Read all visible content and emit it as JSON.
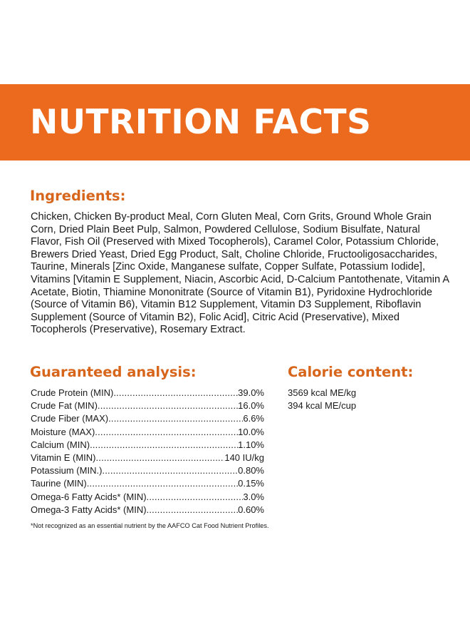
{
  "banner": {
    "title": "NUTRITION FACTS",
    "color": "#ec6a1e"
  },
  "accent_color": "#d7661c",
  "ingredients": {
    "heading": "Ingredients:",
    "text": "Chicken, Chicken By-product Meal, Corn Gluten Meal, Corn Grits, Ground Whole Grain Corn, Dried Plain Beet Pulp, Salmon, Powdered Cellulose, Sodium Bisulfate, Natural Flavor, Fish Oil (Preserved with Mixed Tocopherols), Caramel Color, Potassium Chloride, Brewers Dried Yeast, Dried Egg Product, Salt, Choline Chloride, Fructooligosaccharides, Taurine, Minerals [Zinc Oxide, Manganese sulfate, Copper Sulfate, Potassium Iodide], Vitamins [Vitamin E Supplement, Niacin, Ascorbic Acid, D-Calcium Pantothenate, Vitamin A Acetate, Biotin, Thiamine Mononitrate (Source of Vitamin B1), Pyridoxine Hydrochloride (Source of Vitamin B6), Vitamin B12 Supplement, Vitamin D3 Supplement, Riboflavin Supplement (Source of Vitamin B2), Folic Acid], Citric Acid (Preservative), Mixed Tocopherols (Preservative), Rosemary Extract."
  },
  "analysis": {
    "heading": "Guaranteed analysis:",
    "rows": [
      {
        "label": "Crude Protein (MIN)",
        "value": "39.0%"
      },
      {
        "label": "Crude Fat (MIN)",
        "value": "16.0%"
      },
      {
        "label": "Crude Fiber (MAX)",
        "value": "6.6%"
      },
      {
        "label": "Moisture (MAX)",
        "value": "10.0%"
      },
      {
        "label": "Calcium (MIN)",
        "value": "1.10%"
      },
      {
        "label": "Vitamin E (MIN)",
        "value": "140 IU/kg"
      },
      {
        "label": "Potassium (MIN.)",
        "value": "0.80%"
      },
      {
        "label": "Taurine (MIN)",
        "value": "0.15%"
      },
      {
        "label": "Omega-6 Fatty Acids* (MIN)",
        "value": "3.0%"
      },
      {
        "label": "Omega-3 Fatty Acids* (MIN)",
        "value": "0.60%"
      }
    ]
  },
  "calorie": {
    "heading": "Calorie content:",
    "lines": [
      "3569 kcal ME/kg",
      "394 kcal ME/cup"
    ]
  },
  "footnote": "*Not recognized as an essential nutrient by the AAFCO Cat Food Nutrient Profiles."
}
